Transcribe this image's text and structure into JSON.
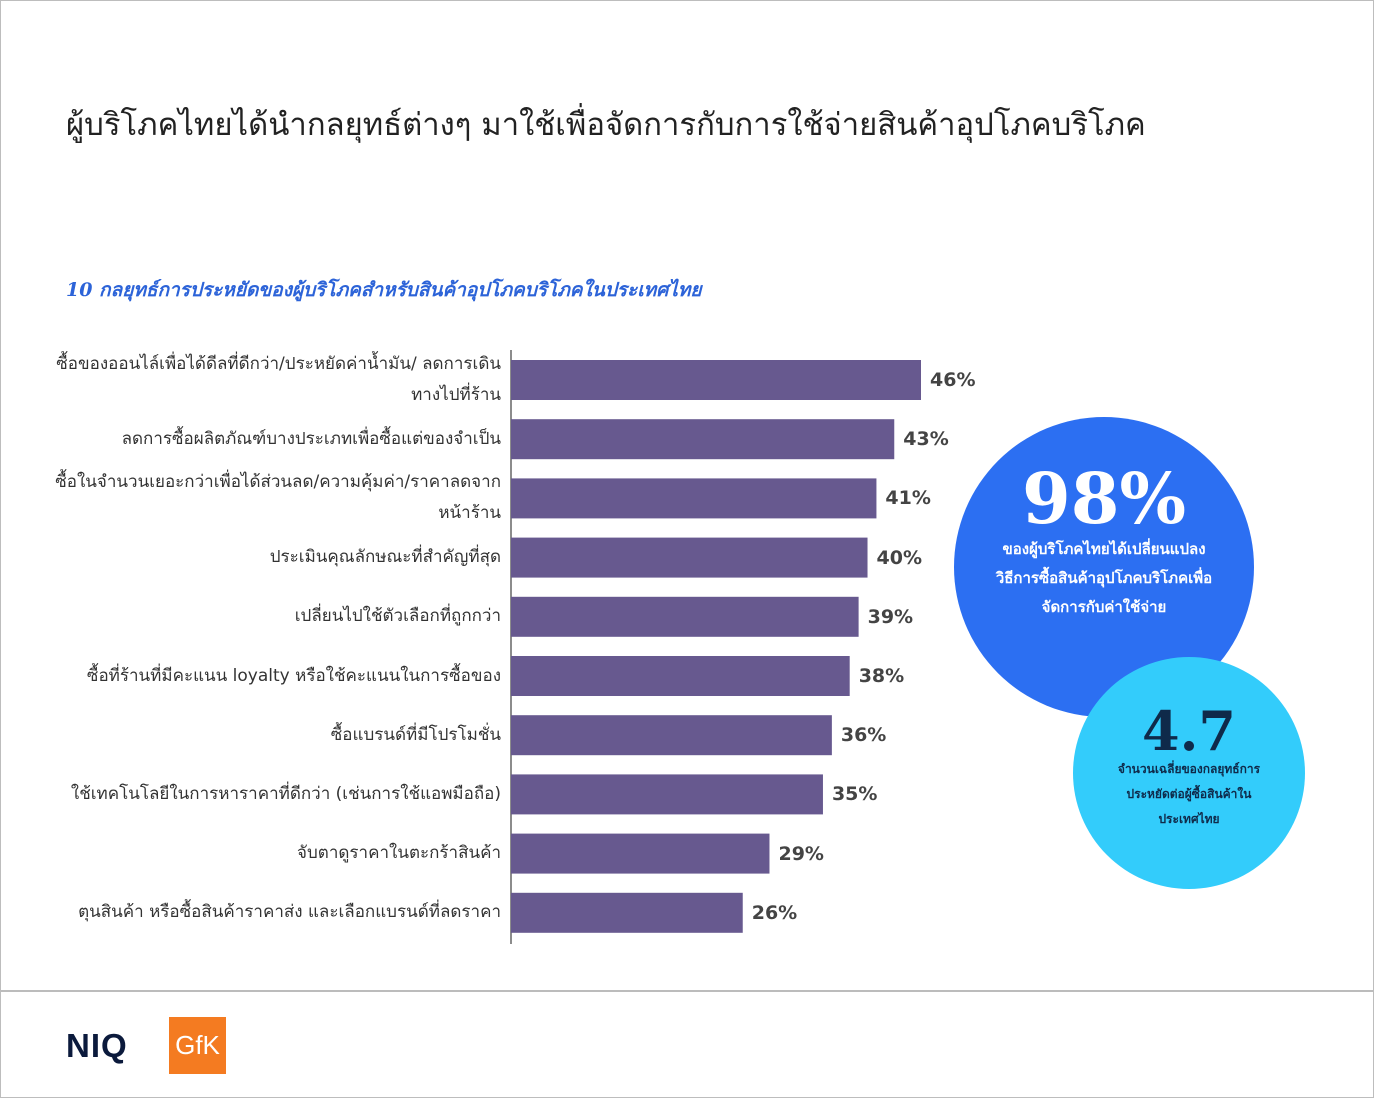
{
  "header": {
    "title": "ผู้บริโภคไทยได้นำกลยุทธ์ต่างๆ มาใช้เพื่อจัดการกับการใช้จ่ายสินค้าอุปโภคบริโภค"
  },
  "chart_data": {
    "type": "bar",
    "orientation": "horizontal",
    "title": "10 กลยุทธ์การประหยัดของผู้บริโภคสำหรับสินค้าอุปโภคบริโภคในประเทศไทย",
    "xlabel": "",
    "ylabel": "",
    "xlim": [
      0,
      46
    ],
    "grid": false,
    "bar_color": "#67598f",
    "categories": [
      "ซื้อของออนไล์เพื่อได้ดีลที่ดีกว่า/ประหยัดค่าน้ำมัน/ ลดการเดินทางไปที่ร้าน",
      "ลดการซื้อผลิตภัณฑ์บางประเภทเพื่อซื้อแต่ของจำเป็น",
      "ซื้อในจำนวนเยอะกว่าเพื่อได้ส่วนลด/ความคุ้มค่า/ราคาลดจากหน้าร้าน",
      "ประเมินคุณลักษณะที่สำคัญที่สุด",
      "เปลี่ยนไปใช้ตัวเลือกที่ถูกกว่า",
      "ซื้อที่ร้านที่มีคะแนน loyalty หรือใช้คะแนนในการซื้อของ",
      "ซื้อแบรนด์ที่มีโปรโมชั่น",
      "ใช้เทคโนโลยีในการหาราคาที่ดีกว่า (เช่นการใช้แอพมือถือ)",
      "จับตาดูราคาในตะกร้าสินค้า",
      "ตุนสินค้า หรือซื้อสินค้าราคาส่ง และเลือกแบรนด์ที่ลดราคา"
    ],
    "values": [
      46,
      43,
      41,
      40,
      39,
      38,
      36,
      35,
      29,
      26
    ],
    "value_labels": [
      "46%",
      "43%",
      "41%",
      "40%",
      "39%",
      "38%",
      "36%",
      "35%",
      "29%",
      "26%"
    ]
  },
  "stats": {
    "main": {
      "value": "98%",
      "description": "ของผู้บริโภคไทยได้เปลี่ยนแปลงวิธีการซื้อสินค้าอุปโภคบริโภคเพื่อจัดการกับค่าใช้จ่าย",
      "color": "#2c6ff2"
    },
    "secondary": {
      "value": "4.7",
      "description": "จำนวนเฉลี่ยของกลยุทธ์การประหยัดต่อผู้ซื้อสินค้าในประเทศไทย",
      "color": "#33ccfb"
    }
  },
  "footer": {
    "logo_niq": "NIQ",
    "logo_gfk": "GfK",
    "gfk_color": "#f47b21"
  }
}
